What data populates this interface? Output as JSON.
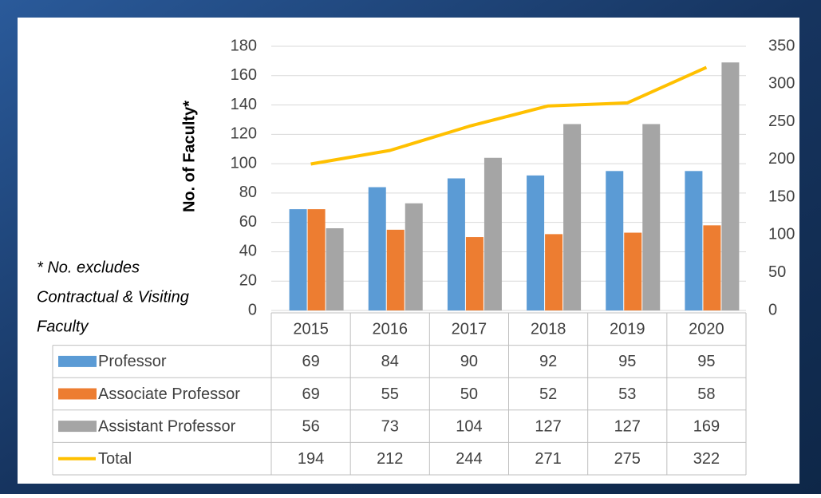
{
  "chart_data": {
    "type": "bar",
    "y_label": "No. of Faculty*",
    "annotation": [
      "* No. excludes",
      "Contractual & Visiting",
      "Faculty"
    ],
    "categories": [
      "2015",
      "2016",
      "2017",
      "2018",
      "2019",
      "2020"
    ],
    "series": [
      {
        "name": "Professor",
        "color": "#5b9bd5",
        "type": "bar",
        "values": [
          69,
          84,
          90,
          92,
          95,
          95
        ]
      },
      {
        "name": "Associate Professor",
        "color": "#ed7d31",
        "type": "bar",
        "values": [
          69,
          55,
          50,
          52,
          53,
          58
        ]
      },
      {
        "name": "Assistant Professor",
        "color": "#a5a5a5",
        "type": "bar",
        "values": [
          56,
          73,
          104,
          127,
          127,
          169
        ]
      },
      {
        "name": "Total",
        "color": "#ffc000",
        "type": "line",
        "axis": "y2",
        "values": [
          194,
          212,
          244,
          271,
          275,
          322
        ]
      }
    ],
    "ylim": [
      0,
      180
    ],
    "yticks": [
      0,
      20,
      40,
      60,
      80,
      100,
      120,
      140,
      160,
      180
    ],
    "y2lim": [
      0,
      350
    ],
    "y2ticks": [
      0,
      50,
      100,
      150,
      200,
      250,
      300,
      350
    ],
    "grid": true,
    "data_table": true
  }
}
